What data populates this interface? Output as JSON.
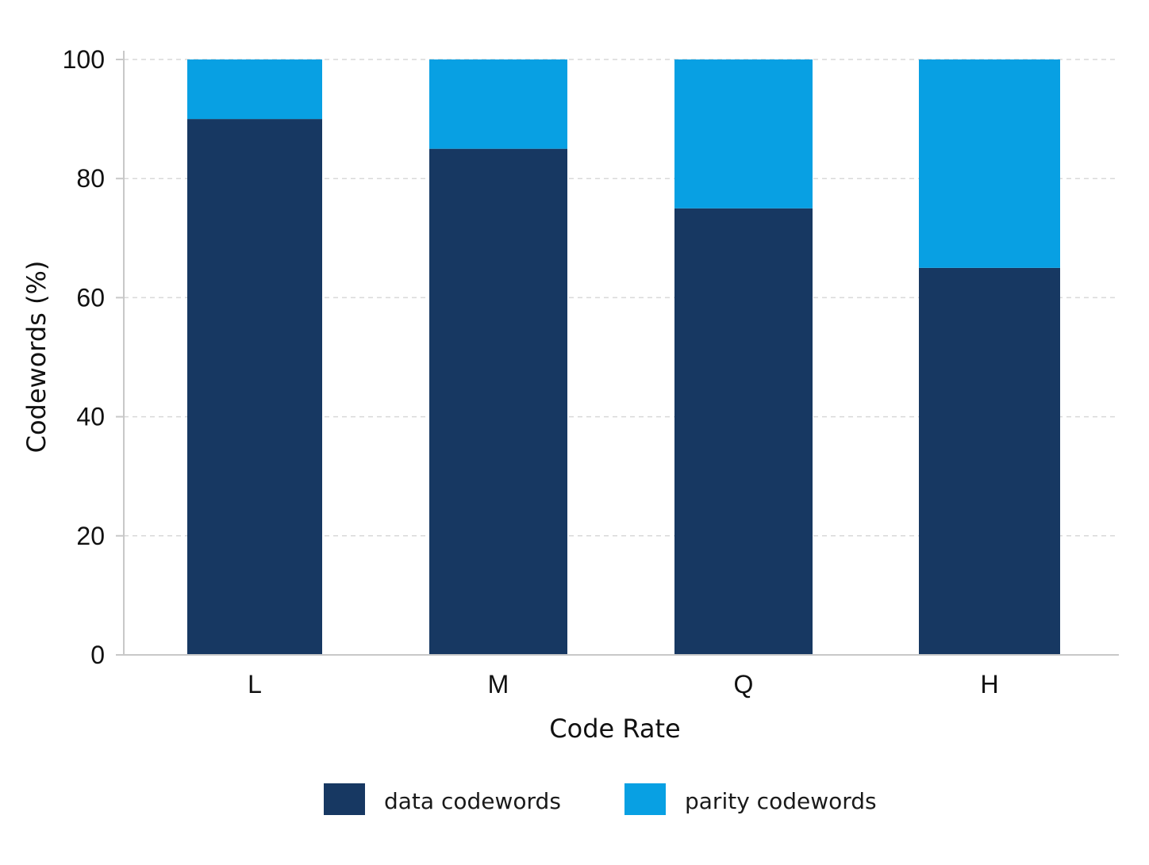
{
  "chart_data": {
    "type": "bar",
    "stacked": true,
    "title": "",
    "xlabel": "Code Rate",
    "ylabel": "Codewords (%)",
    "categories": [
      "L",
      "M",
      "Q",
      "H"
    ],
    "series": [
      {
        "name": "data codewords",
        "values": [
          90,
          85,
          75,
          65
        ],
        "color": "#173862"
      },
      {
        "name": "parity codewords",
        "values": [
          10,
          15,
          25,
          35
        ],
        "color": "#08a0e3"
      }
    ],
    "ylim": [
      0,
      100
    ],
    "yticks": [
      0,
      20,
      40,
      60,
      80,
      100
    ],
    "grid": true,
    "legend_position": "bottom"
  }
}
